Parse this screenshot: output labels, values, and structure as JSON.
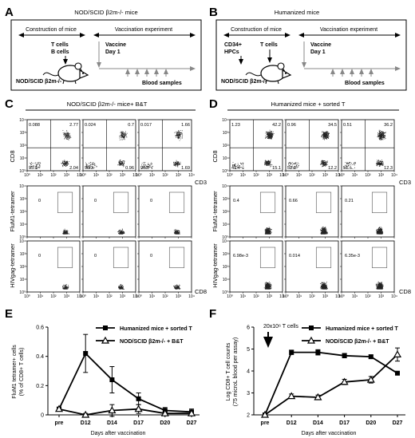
{
  "panelA": {
    "letter": "A",
    "title": "NOD/SCID β2m-/- mice",
    "construction": "Construction of mice",
    "vaccination": "Vaccination experiment",
    "cells": [
      "T cells",
      "B cells"
    ],
    "vaccine": [
      "Vaccine",
      "Day 1"
    ],
    "host": "NOD/SCID β2m-/-",
    "blood": "Blood samples"
  },
  "panelB": {
    "letter": "B",
    "title": "Humanized mice",
    "construction": "Construction of mice",
    "vaccination": "Vaccination experiment",
    "cells": [
      "CD34+",
      "HPCs",
      "T cells"
    ],
    "vaccine": [
      "Vaccine",
      "Day 1"
    ],
    "host": "NOD/SCID β2m-/-",
    "blood": "Blood samples"
  },
  "panelC": {
    "letter": "C",
    "title": "NOD/SCID β2m-/- mice+ B&T",
    "rowLabels": [
      "CD8",
      "FluM1-tetramer",
      "HIVgag-tetramer"
    ],
    "xLabels": [
      "CD3",
      "CD8"
    ],
    "quadrants": [
      [
        "0.088",
        "2.77",
        "95.1",
        "2.04"
      ],
      [
        "0.024",
        "0.7",
        "98.3",
        "0.96"
      ],
      [
        "0.017",
        "1.66",
        "96.6",
        "1.69"
      ]
    ],
    "flu": [
      "0",
      "0",
      "0"
    ],
    "hiv": [
      "0",
      "0",
      "0"
    ]
  },
  "panelD": {
    "letter": "D",
    "title": "Humanized mice + sorted T",
    "rowLabels": [
      "CD8",
      "FluM1-tetramer",
      "HIVgag-tetramer"
    ],
    "xLabels": [
      "CD3",
      "CD8"
    ],
    "quadrants": [
      [
        "1.23",
        "42.2",
        "41.4",
        "15.1"
      ],
      [
        "0.96",
        "34.5",
        "52.3",
        "12.2"
      ],
      [
        "0.51",
        "36.2",
        "51",
        "12.3"
      ]
    ],
    "flu": [
      "0.4",
      "0.66",
      "0.21"
    ],
    "hiv": [
      "6.98e-3",
      "0.014",
      "6.35e-3"
    ]
  },
  "ticks": [
    "10⁰",
    "10¹",
    "10²",
    "10³",
    "10⁴"
  ],
  "chart_data": [
    {
      "panel": "E",
      "type": "line",
      "categories": [
        "pre",
        "D12",
        "D14",
        "D17",
        "D20",
        "D27"
      ],
      "xlabel": "Days after vaccination",
      "ylabel": [
        "FluM1 tetramer+ cells",
        "(% of CD8+ T cells)"
      ],
      "ylim": [
        0,
        0.6
      ],
      "yticks": [
        "0",
        "0.2",
        "0.4",
        "0.6"
      ],
      "series": [
        {
          "name": "Humanized mice + sorted T",
          "marker": "square",
          "values": [
            0.04,
            0.42,
            0.24,
            0.11,
            0.03,
            0.02
          ],
          "errors": [
            0.01,
            0.13,
            0.09,
            0.04,
            0.02,
            0.02
          ]
        },
        {
          "name": "NOD/SCID β2m-/- + B&T",
          "marker": "triangle",
          "values": [
            0.04,
            0.0,
            0.03,
            0.04,
            0.01,
            0.01
          ],
          "errors": [
            0.01,
            0.01,
            0.04,
            0.03,
            0.01,
            0.01
          ]
        }
      ]
    },
    {
      "panel": "F",
      "type": "line",
      "categories": [
        "pre",
        "D12",
        "D14",
        "D17",
        "D20",
        "D27"
      ],
      "xlabel": "Days after vaccination",
      "ylabel": [
        "Log CD8+ T cell counts",
        "(75 microL blood per assay)"
      ],
      "ylim": [
        2,
        6
      ],
      "yticks": [
        "2",
        "3",
        "4",
        "5",
        "6"
      ],
      "annotation": "20x10⁶ T cells",
      "series": [
        {
          "name": "Humanized mice + sorted T",
          "marker": "square",
          "values": [
            2.0,
            4.85,
            4.85,
            4.7,
            4.65,
            3.9
          ],
          "errors": [
            0.0,
            0.1,
            0.12,
            0.1,
            0.08,
            0.05
          ]
        },
        {
          "name": "NOD/SCID β2m-/- + B&T",
          "marker": "triangle",
          "values": [
            2.0,
            2.85,
            2.8,
            3.5,
            3.6,
            4.75
          ],
          "errors": [
            0.0,
            0.1,
            0.1,
            0.12,
            0.15,
            0.3
          ]
        }
      ]
    }
  ]
}
